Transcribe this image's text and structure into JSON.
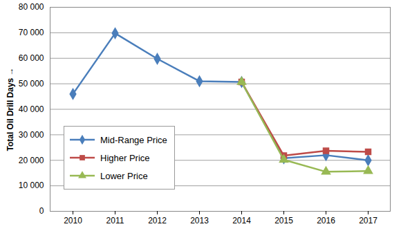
{
  "chart_data": {
    "type": "line",
    "y_label": "Total Oil Drill Days",
    "categories": [
      "2010",
      "2011",
      "2012",
      "2013",
      "2014",
      "2015",
      "2016",
      "2017"
    ],
    "series": [
      {
        "name": "Mid-Range Price",
        "color": "#4a7ebb",
        "marker": "diamond",
        "values": [
          46000,
          69800,
          59800,
          51000,
          50700,
          20800,
          22000,
          20000
        ]
      },
      {
        "name": "Higher Price",
        "color": "#be4b48",
        "marker": "square",
        "values": [
          null,
          null,
          null,
          null,
          50700,
          21800,
          23700,
          23300
        ]
      },
      {
        "name": "Lower Price",
        "color": "#98b954",
        "marker": "triangle",
        "values": [
          null,
          null,
          null,
          null,
          50700,
          20200,
          15500,
          15800
        ]
      }
    ],
    "ylim": [
      0,
      80000
    ],
    "yticks": [
      0,
      {
        "value": 10000,
        "label": "10 000"
      },
      {
        "value": 20000,
        "label": "20 000"
      },
      {
        "value": 30000,
        "label": "30 000"
      },
      {
        "value": 40000,
        "label": "40 000"
      },
      {
        "value": 50000,
        "label": "50 000"
      },
      {
        "value": 60000,
        "label": "60 000"
      },
      {
        "value": 70000,
        "label": "70 000"
      },
      {
        "value": 80000,
        "label": "80 000"
      }
    ],
    "grid": true,
    "legend": "left"
  }
}
